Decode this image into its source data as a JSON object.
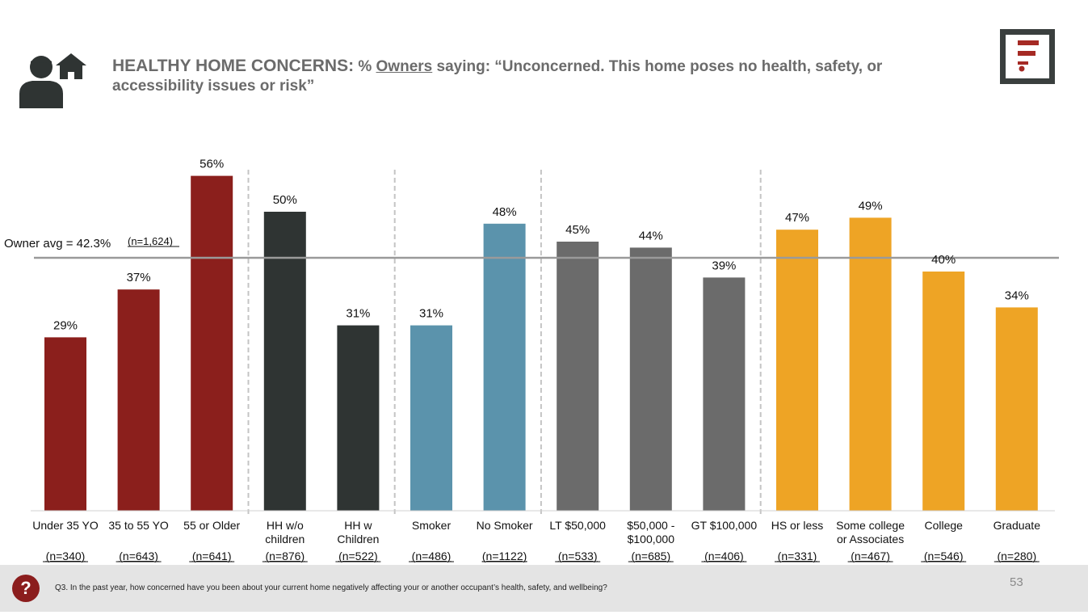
{
  "header": {
    "title_lead": "HEALTHY HOME CONCERNS:",
    "title_pre": " % ",
    "title_underlined": "Owners",
    "title_rest": " saying: “Unconcerned. This home poses no health, safety, or accessibility issues or risk”",
    "icon": "person-home-icon",
    "logo": "brand-logo-icon"
  },
  "footer": {
    "badge": "?",
    "question": "Q3. In the past year, how concerned have you been about your current home negatively affecting your or another occupant’s health, safety, and wellbeing?",
    "page_number": "53"
  },
  "colors": {
    "title": "#6b6b6b",
    "red": "#8b1f1c",
    "dark": "#2f3433",
    "blue": "#5b93ac",
    "gray": "#6b6b6b",
    "orange": "#eea425",
    "avg_line": "#9a9a9a"
  },
  "chart_data": {
    "type": "bar",
    "ylim": [
      0,
      60
    ],
    "grid": false,
    "reference_line": {
      "label": "Owner avg = 42.3%",
      "n_label": "(n=1,624)",
      "value": 42.3
    },
    "categories": [
      {
        "label": [
          "Under 35 YO"
        ],
        "n": "(n=340)",
        "value": 29,
        "value_label": "29%",
        "group": "red"
      },
      {
        "label": [
          "35 to 55 YO"
        ],
        "n": "(n=643)",
        "value": 37,
        "value_label": "37%",
        "group": "red"
      },
      {
        "label": [
          "55 or Older"
        ],
        "n": "(n=641)",
        "value": 56,
        "value_label": "56%",
        "group": "red"
      },
      {
        "label": [
          "HH w/o",
          "children"
        ],
        "n": "(n=876)",
        "value": 50,
        "value_label": "50%",
        "group": "dark"
      },
      {
        "label": [
          "HH w",
          "Children"
        ],
        "n": "(n=522)",
        "value": 31,
        "value_label": "31%",
        "group": "dark"
      },
      {
        "label": [
          "Smoker"
        ],
        "n": "(n=486)",
        "value": 31,
        "value_label": "31%",
        "group": "blue"
      },
      {
        "label": [
          "No Smoker"
        ],
        "n": "(n=1122)",
        "value": 48,
        "value_label": "48%",
        "group": "blue"
      },
      {
        "label": [
          "LT $50,000"
        ],
        "n": "(n=533)",
        "value": 45,
        "value_label": "45%",
        "group": "gray"
      },
      {
        "label": [
          "$50,000 -",
          "$100,000"
        ],
        "n": "(n=685)",
        "value": 44,
        "value_label": "44%",
        "group": "gray"
      },
      {
        "label": [
          "GT $100,000"
        ],
        "n": "(n=406)",
        "value": 39,
        "value_label": "39%",
        "group": "gray"
      },
      {
        "label": [
          "HS or less"
        ],
        "n": "(n=331)",
        "value": 47,
        "value_label": "47%",
        "group": "orange"
      },
      {
        "label": [
          "Some college",
          "or Associates"
        ],
        "n": "(n=467)",
        "value": 49,
        "value_label": "49%",
        "group": "orange"
      },
      {
        "label": [
          "College"
        ],
        "n": "(n=546)",
        "value": 40,
        "value_label": "40%",
        "group": "orange"
      },
      {
        "label": [
          "Graduate"
        ],
        "n": "(n=280)",
        "value": 34,
        "value_label": "34%",
        "group": "orange"
      }
    ],
    "group_separators_after": [
      2,
      4,
      6,
      9
    ]
  }
}
